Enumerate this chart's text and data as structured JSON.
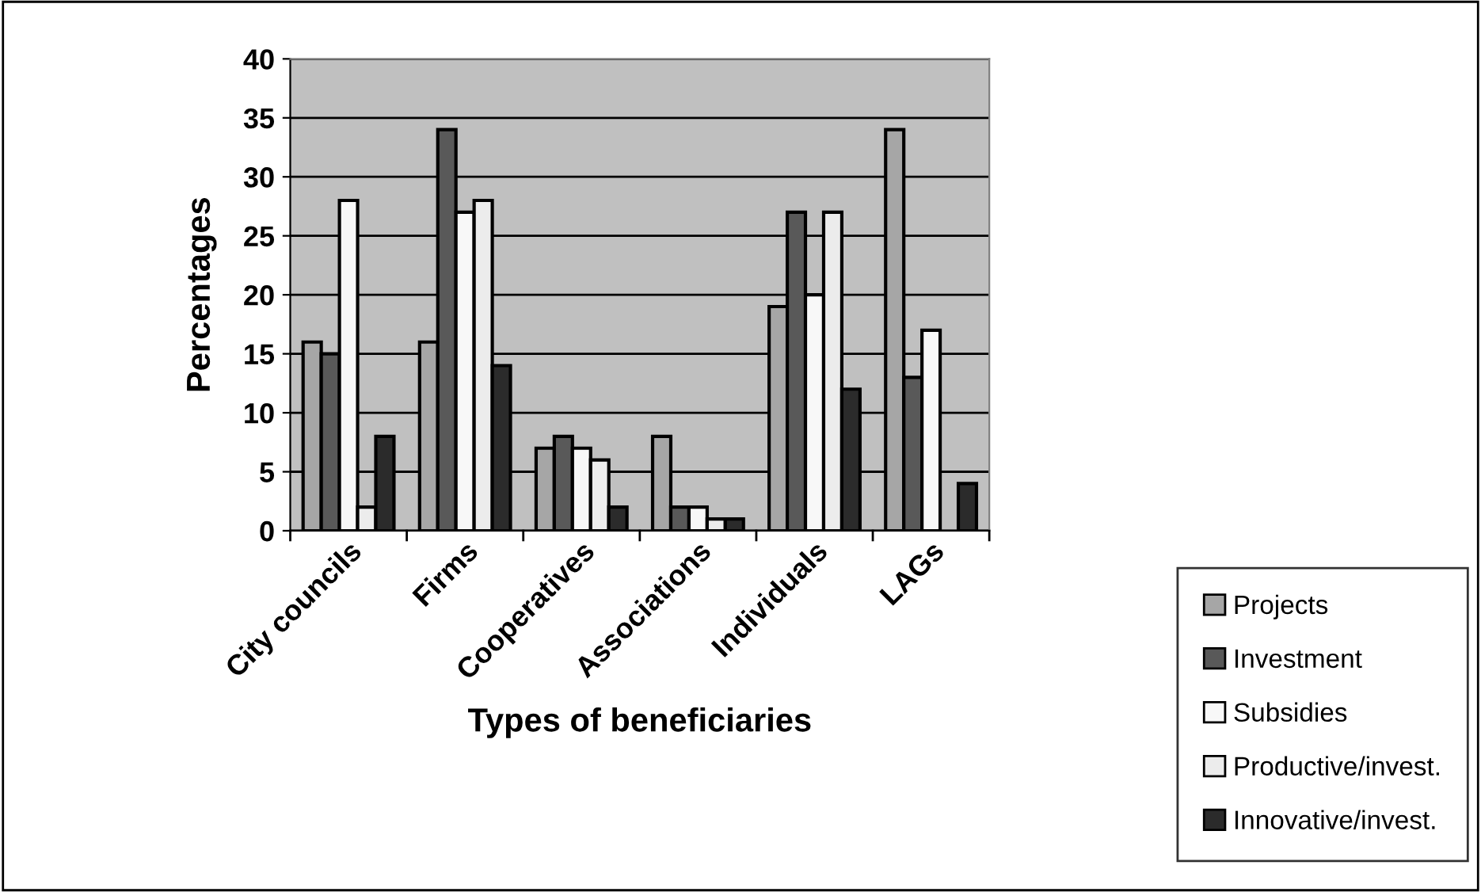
{
  "chart_data": {
    "type": "bar",
    "xlabel": "Types of beneficiaries",
    "ylabel": "Percentages",
    "categories": [
      "City councils",
      "Firms",
      "Cooperatives",
      "Associations",
      "Individuals",
      "LAGs"
    ],
    "series": [
      {
        "name": "Projects",
        "color": "#a6a6a6",
        "values": [
          16,
          16,
          7,
          8,
          19,
          34
        ]
      },
      {
        "name": "Investment",
        "color": "#595959",
        "values": [
          15,
          34,
          8,
          2,
          27,
          13
        ]
      },
      {
        "name": "Subsidies",
        "color": "#f8f8f8",
        "values": [
          28,
          27,
          7,
          2,
          20,
          17
        ]
      },
      {
        "name": "Productive/invest.",
        "color": "#ececec",
        "values": [
          2,
          28,
          6,
          1,
          27,
          0
        ]
      },
      {
        "name": "Innovative/invest.",
        "color": "#2b2b2b",
        "values": [
          8,
          14,
          2,
          1,
          12,
          4
        ]
      }
    ],
    "ylim": [
      0,
      40
    ],
    "yticks": [
      0,
      5,
      10,
      15,
      20,
      25,
      30,
      35,
      40
    ],
    "grid": "y",
    "legend": "bottom right"
  }
}
